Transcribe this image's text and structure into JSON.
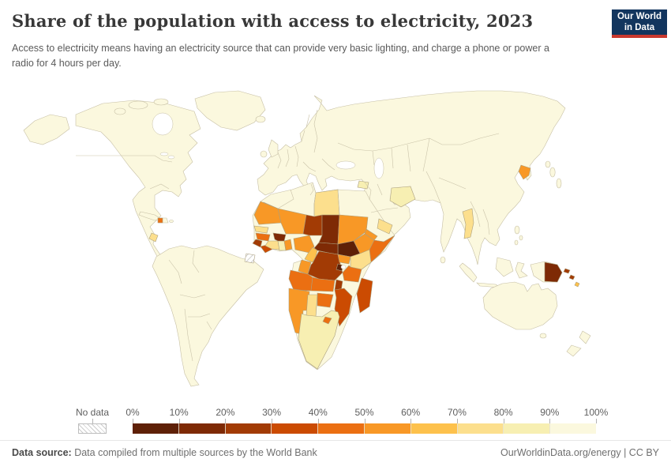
{
  "header": {
    "title": "Share of the population with access to electricity, 2023",
    "subtitle": "Access to electricity means having an electricity source that can provide very basic lighting, and charge a phone or power a radio for 4 hours per day.",
    "logo": {
      "line1": "Our World",
      "line2": "in Data",
      "bg_color": "#12355e",
      "accent_color": "#c9382e"
    }
  },
  "chart_data": {
    "type": "choropleth",
    "title": "Share of the population with access to electricity, 2023",
    "unit": "% of population",
    "year": "2023",
    "legend": {
      "no_data_label": "No data",
      "tick_labels": [
        "0%",
        "10%",
        "20%",
        "30%",
        "40%",
        "50%",
        "60%",
        "70%",
        "80%",
        "90%",
        "100%"
      ],
      "bins": [
        {
          "range": "0-10%",
          "color": "#5E2007"
        },
        {
          "range": "10-20%",
          "color": "#7E2A05"
        },
        {
          "range": "20-30%",
          "color": "#A23B05"
        },
        {
          "range": "30-40%",
          "color": "#CB4B02"
        },
        {
          "range": "40-50%",
          "color": "#EB6F12"
        },
        {
          "range": "50-60%",
          "color": "#F89826"
        },
        {
          "range": "60-70%",
          "color": "#FDC14C"
        },
        {
          "range": "70-80%",
          "color": "#FCDF8D"
        },
        {
          "range": "80-90%",
          "color": "#F7EFB2"
        },
        {
          "range": "90-100%",
          "color": "#FBF8DE"
        }
      ]
    },
    "default_color": "#FBF8DE",
    "default_bin_note": "All countries not listed below (Europe, Americas, most of Asia, Oceania) are shown in the 90-100% bin",
    "countries": {
      "western-sahara": {
        "name": "Western Sahara",
        "no_data": true
      },
      "french-guiana": {
        "name": "French Guiana",
        "no_data": true
      },
      "libya": {
        "name": "Libya",
        "bin": 7
      },
      "mauritania": {
        "name": "Mauritania",
        "bin": 5
      },
      "mali": {
        "name": "Mali",
        "bin": 5
      },
      "niger": {
        "name": "Niger",
        "bin": 2
      },
      "chad": {
        "name": "Chad",
        "bin": 1
      },
      "sudan": {
        "name": "Sudan",
        "bin": 5
      },
      "eritrea": {
        "name": "Eritrea",
        "bin": 5
      },
      "ethiopia": {
        "name": "Ethiopia",
        "bin": 5
      },
      "somalia": {
        "name": "Somalia",
        "bin": 4
      },
      "south-sudan": {
        "name": "South Sudan",
        "bin": 0
      },
      "central-african-republic": {
        "name": "Central African Republic",
        "bin": 1
      },
      "nigeria": {
        "name": "Nigeria",
        "bin": 5
      },
      "cameroon": {
        "name": "Cameroon",
        "bin": 6
      },
      "senegal": {
        "name": "Senegal",
        "bin": 7
      },
      "guinea": {
        "name": "Guinea",
        "bin": 4
      },
      "sierra-leone": {
        "name": "Sierra Leone",
        "bin": 2
      },
      "liberia": {
        "name": "Liberia",
        "bin": 3
      },
      "cote-divoire": {
        "name": "Cote d'Ivoire",
        "bin": 7
      },
      "ghana": {
        "name": "Ghana",
        "bin": 8
      },
      "togo-benin": {
        "name": "Togo & Benin",
        "bin": 5
      },
      "burkina-faso": {
        "name": "Burkina Faso",
        "bin": 1
      },
      "congo": {
        "name": "Congo",
        "bin": 5
      },
      "drc": {
        "name": "Democratic Republic of Congo",
        "bin": 2
      },
      "uganda": {
        "name": "Uganda",
        "bin": 5
      },
      "kenya": {
        "name": "Kenya",
        "bin": 7
      },
      "rwanda-burundi": {
        "name": "Rwanda & Burundi",
        "bin": 0
      },
      "tanzania": {
        "name": "Tanzania",
        "bin": 4
      },
      "angola": {
        "name": "Angola",
        "bin": 4
      },
      "zambia": {
        "name": "Zambia",
        "bin": 4
      },
      "malawi": {
        "name": "Malawi",
        "bin": 2
      },
      "mozambique": {
        "name": "Mozambique",
        "bin": 3
      },
      "zimbabwe": {
        "name": "Zimbabwe",
        "bin": 4
      },
      "namibia": {
        "name": "Namibia",
        "bin": 5
      },
      "botswana": {
        "name": "Botswana",
        "bin": 7
      },
      "south-africa": {
        "name": "South Africa",
        "bin": 8
      },
      "lesotho": {
        "name": "Lesotho",
        "bin": 4
      },
      "madagascar": {
        "name": "Madagascar",
        "bin": 3
      },
      "haiti": {
        "name": "Haiti",
        "bin": 4
      },
      "honduras": {
        "name": "Honduras",
        "bin": 7
      },
      "afghanistan": {
        "name": "Afghanistan",
        "bin": 8
      },
      "yemen": {
        "name": "Yemen",
        "bin": 7
      },
      "syria": {
        "name": "Syria",
        "bin": 8
      },
      "myanmar": {
        "name": "Myanmar",
        "bin": 7
      },
      "north-korea": {
        "name": "North Korea",
        "bin": 5
      },
      "papua-new-guinea": {
        "name": "Papua New Guinea",
        "bin": 1
      },
      "solomon-islands": {
        "name": "Solomon Islands",
        "bin": 2
      },
      "vanuatu": {
        "name": "Vanuatu",
        "bin": 6
      }
    }
  },
  "footer": {
    "datasource_label": "Data source:",
    "datasource_value": " Data compiled from multiple sources by the World Bank",
    "right_text": "OurWorldinData.org/energy | CC BY"
  }
}
